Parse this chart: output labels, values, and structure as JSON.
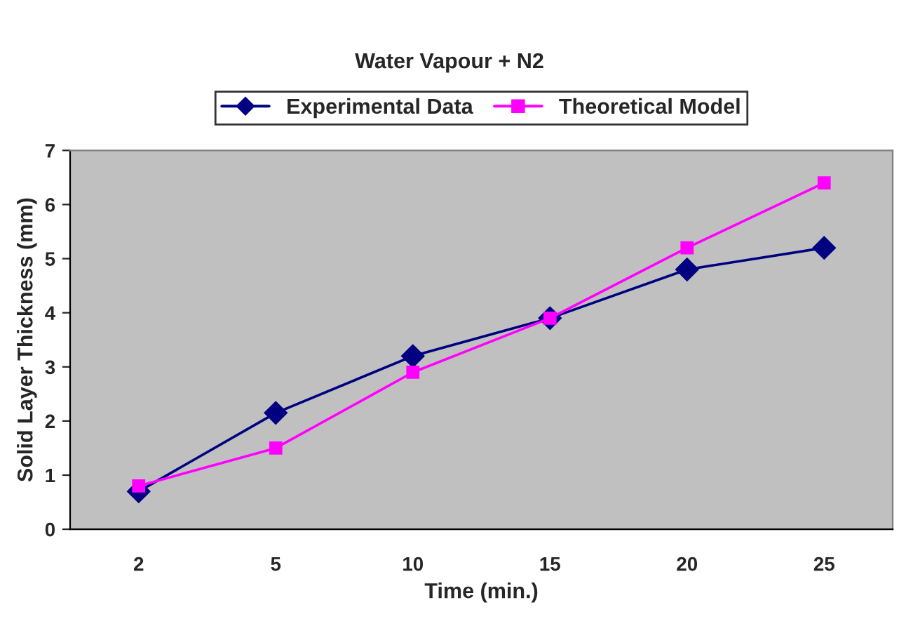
{
  "chart_data": {
    "type": "line",
    "title": "Water Vapour + N2",
    "xlabel": "Time (min.)",
    "ylabel": "Solid Layer Thickness (mm)",
    "categories": [
      "2",
      "5",
      "10",
      "15",
      "20",
      "25"
    ],
    "series": [
      {
        "name": "Experimental Data",
        "color": "#000080",
        "marker": "diamond",
        "values": [
          0.7,
          2.15,
          3.2,
          3.9,
          4.8,
          5.2
        ]
      },
      {
        "name": "Theoretical Model",
        "color": "#ff00ff",
        "marker": "square",
        "values": [
          0.8,
          1.5,
          2.9,
          3.9,
          5.2,
          6.4
        ]
      }
    ],
    "ylim": [
      0,
      7
    ],
    "yticks": [
      0,
      1,
      2,
      3,
      4,
      5,
      6,
      7
    ],
    "grid": false,
    "legend": "top",
    "line_style": "solid"
  }
}
